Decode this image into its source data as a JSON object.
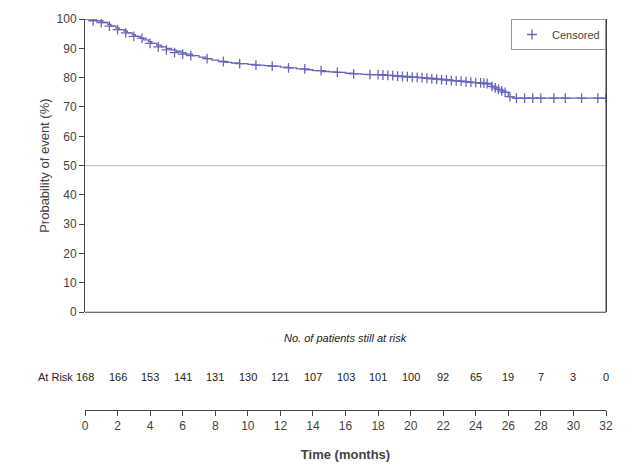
{
  "chart_data": {
    "type": "line",
    "xlabel": "Time (months)",
    "ylabel": "Probability of event (%)",
    "xlim": [
      0,
      32
    ],
    "ylim": [
      0,
      100
    ],
    "xticks": [
      0,
      2,
      4,
      6,
      8,
      10,
      12,
      14,
      16,
      18,
      20,
      22,
      24,
      26,
      28,
      30,
      32
    ],
    "yticks": [
      0,
      10,
      20,
      30,
      40,
      50,
      60,
      70,
      80,
      90,
      100
    ],
    "grid": false,
    "legend": "upper right",
    "reference_lines": [
      {
        "y": 50
      }
    ],
    "series": [
      {
        "type": "line",
        "line_style": "step",
        "color": "#6666bb",
        "x": [
          0,
          0.5,
          0.7,
          1.1,
          1.4,
          1.6,
          1.9,
          2.1,
          2.4,
          2.6,
          2.9,
          3.1,
          3.4,
          3.6,
          3.9,
          4.1,
          4.4,
          4.7,
          5.0,
          5.3,
          5.6,
          5.9,
          6.2,
          6.6,
          7.0,
          7.4,
          7.8,
          8.2,
          8.6,
          9.0,
          9.5,
          10.0,
          10.5,
          11.0,
          11.5,
          12.0,
          12.5,
          13.0,
          13.5,
          14.0,
          14.5,
          15.0,
          15.5,
          16.0,
          16.5,
          17.0,
          17.5,
          18.0,
          18.5,
          19.0,
          19.5,
          20.0,
          20.5,
          21.0,
          21.5,
          22.0,
          22.3,
          22.6,
          22.9,
          23.2,
          23.5,
          23.8,
          24.1,
          24.4,
          24.7,
          25.0,
          25.2,
          25.4,
          25.6,
          25.8,
          26.0,
          26.3,
          26.7,
          27.2,
          27.8,
          28.5,
          29.0,
          29.5,
          30.0,
          30.5,
          31.0,
          31.5,
          32.0
        ],
        "values": [
          100,
          100,
          99.4,
          98.8,
          98.2,
          97.6,
          97.0,
          96.4,
          95.9,
          95.3,
          94.7,
          94.1,
          93.5,
          92.9,
          92.3,
          91.7,
          91.1,
          90.5,
          90.0,
          89.5,
          89.0,
          88.5,
          88.0,
          87.5,
          87.0,
          86.5,
          86.0,
          85.5,
          85.2,
          85.0,
          84.8,
          84.5,
          84.3,
          84.1,
          83.9,
          83.6,
          83.3,
          83.0,
          82.7,
          82.4,
          82.1,
          82.0,
          81.8,
          81.5,
          81.3,
          81.1,
          81.0,
          81.0,
          80.8,
          80.6,
          80.4,
          80.2,
          80.0,
          79.8,
          79.6,
          79.4,
          79.2,
          79.0,
          78.8,
          78.7,
          78.5,
          78.3,
          78.1,
          78.0,
          77.8,
          77.0,
          76.5,
          76.0,
          75.5,
          75.0,
          73.5,
          73.0,
          73.0,
          73.0,
          73.0,
          73.0,
          73.0,
          73.0,
          73.0,
          73.0,
          73.0,
          73.0,
          72.9
        ]
      },
      {
        "name": "Censored",
        "type": "scatter",
        "marker": "cross",
        "color": "#6666bb",
        "x": [
          0.5,
          1.0,
          1.5,
          2.0,
          2.5,
          3.0,
          3.5,
          4.0,
          4.5,
          5.0,
          5.5,
          6.0,
          6.5,
          7.5,
          8.5,
          9.5,
          10.5,
          11.5,
          12.5,
          13.5,
          14.5,
          15.5,
          16.5,
          17.5,
          18.0,
          18.3,
          18.6,
          18.9,
          19.2,
          19.5,
          19.8,
          20.1,
          20.4,
          20.7,
          21.0,
          21.3,
          21.6,
          21.9,
          22.2,
          22.5,
          22.8,
          23.1,
          23.4,
          23.7,
          24.0,
          24.3,
          24.5,
          24.7,
          25.0,
          25.2,
          25.4,
          25.6,
          25.8,
          26.1,
          26.5,
          27.0,
          27.5,
          28.0,
          28.8,
          29.5,
          30.5,
          31.5,
          32.0
        ],
        "values": [
          99.4,
          98.8,
          97.6,
          96.4,
          95.3,
          94.1,
          93.5,
          91.7,
          90.5,
          89.5,
          88.5,
          88.0,
          87.5,
          86.5,
          85.5,
          84.8,
          84.3,
          83.9,
          83.3,
          83.0,
          82.4,
          81.8,
          81.3,
          81.0,
          81.0,
          80.9,
          80.8,
          80.7,
          80.5,
          80.4,
          80.3,
          80.2,
          80.1,
          80.0,
          79.8,
          79.6,
          79.5,
          79.3,
          79.2,
          79.0,
          78.9,
          78.8,
          78.6,
          78.5,
          78.3,
          78.2,
          78.1,
          78.0,
          77.0,
          76.5,
          76.0,
          75.5,
          75.0,
          73.5,
          73.0,
          73.0,
          73.0,
          73.0,
          73.0,
          73.0,
          73.0,
          73.0,
          72.9
        ]
      }
    ],
    "at_risk": {
      "title": "No. of patients still at risk",
      "label": "At Risk",
      "x": [
        0,
        2,
        4,
        6,
        8,
        10,
        12,
        14,
        16,
        18,
        20,
        22,
        24,
        26,
        28,
        30,
        32
      ],
      "values": [
        168,
        166,
        153,
        141,
        131,
        130,
        121,
        107,
        103,
        101,
        100,
        92,
        65,
        19,
        7,
        3,
        0
      ]
    }
  }
}
